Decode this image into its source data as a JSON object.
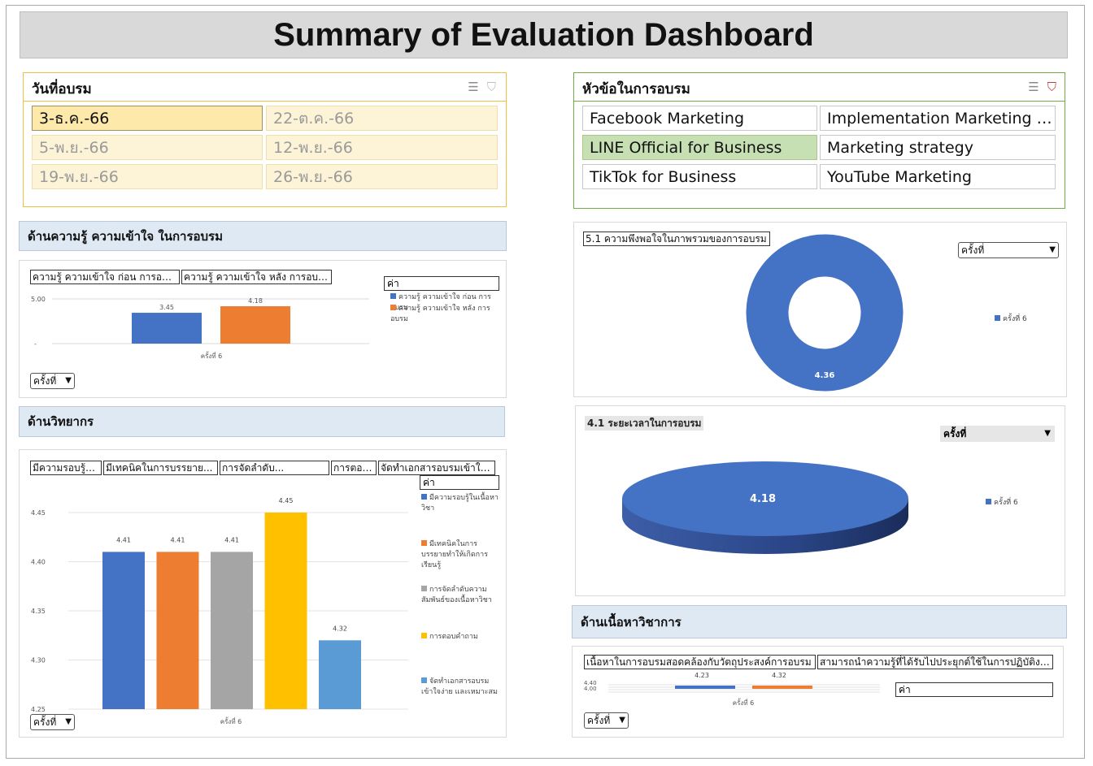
{
  "title": "Summary of Evaluation Dashboard",
  "date_slicer": {
    "header": "วันที่อบรม",
    "items": [
      "3-ธ.ค.-66",
      "22-ต.ค.-66",
      "5-พ.ย.-66",
      "12-พ.ย.-66",
      "19-พ.ย.-66",
      "26-พ.ย.-66"
    ],
    "selected": "3-ธ.ค.-66"
  },
  "topic_slicer": {
    "header": "หัวข้อในการอบรม",
    "items": [
      "Facebook Marketing",
      "Implementation Marketing Wo...",
      "LINE Official for Business",
      "Marketing strategy",
      "TikTok for Business",
      "YouTube Marketing"
    ],
    "selected": "LINE Official for Business"
  },
  "slicer_icons": {
    "multiselect": "multi-select-icon",
    "clear": "clear-filter-icon"
  },
  "knowledge": {
    "header": "ด้านความรู้ ความเข้าใจ ในการอบรม",
    "field_buttons": [
      "ความรู้ ความเข้าใจ ก่อน การอบรม",
      "ความรู้ ความเข้าใจ หลัง การอบรม"
    ],
    "values_label": "ค่า",
    "dropdown": "ครั้งที่"
  },
  "lecturer": {
    "header": "ด้านวิทยากร",
    "field_buttons": [
      "มีความรอบรู้ใน...",
      "มีเทคนิคในการบรรยาย...",
      "การจัดลำดับ...",
      "การตอบ...",
      "จัดทำเอกสารอบรมเข้าใจ..."
    ],
    "values_label": "ค่า",
    "dropdown": "ครั้งที่"
  },
  "satisfaction": {
    "title": "5.1 ความพึงพอใจในภาพรวมของการอบรม",
    "dropdown": "ครั้งที่"
  },
  "duration": {
    "title": "4.1 ระยะเวลาในการอบรม",
    "dropdown": "ครั้งที่"
  },
  "content": {
    "header": "ด้านเนื้อหาวิชาการ",
    "field_buttons": [
      "เนื้อหาในการอบรมสอดคล้องกับวัตถุประสงค์การอบรม",
      "สามารถนำความรู้ที่ได้รับไปประยุกต์ใช้ในการปฏิบัติงาน"
    ],
    "values_label": "ค่า",
    "dropdown": "ครั้งที่"
  },
  "colors": {
    "blue": "#4472c4",
    "orange": "#ed7d31",
    "gray": "#a5a5a5",
    "yellow": "#ffc000",
    "lightblue": "#5b9bd5"
  },
  "chart_data": [
    {
      "id": "knowledge",
      "type": "bar",
      "categories": [
        "ครั้งที่ 6"
      ],
      "series": [
        {
          "name": "ความรู้ ความเข้าใจ ก่อน การอบรม",
          "values": [
            3.45
          ]
        },
        {
          "name": "ความรู้ ความเข้าใจ หลัง การอบรม",
          "values": [
            4.18
          ]
        }
      ],
      "ylim": [
        0,
        5
      ],
      "yticks": [
        "5.00",
        "-"
      ],
      "xlabel": "ครั้งที่ 6"
    },
    {
      "id": "lecturer",
      "type": "bar",
      "categories": [
        "ครั้งที่ 6"
      ],
      "series": [
        {
          "name": "มีความรอบรู้ในเนื้อหาวิชา",
          "values": [
            4.41
          ]
        },
        {
          "name": "มีเทคนิคในการบรรยายทำให้เกิดการเรียนรู้",
          "values": [
            4.41
          ]
        },
        {
          "name": "การจัดลำดับความสัมพันธ์ของเนื้อหาวิชา",
          "values": [
            4.41
          ]
        },
        {
          "name": "การตอบคำถาม",
          "values": [
            4.45
          ]
        },
        {
          "name": "จัดทำเอกสารอบรมเข้าใจง่าย และเหมาะสม",
          "values": [
            4.32
          ]
        }
      ],
      "ylim": [
        4.25,
        4.45
      ],
      "yticks": [
        "4.45",
        "4.40",
        "4.35",
        "4.30",
        "4.25"
      ],
      "xlabel": "ครั้งที่ 6"
    },
    {
      "id": "satisfaction",
      "type": "pie",
      "series": [
        {
          "name": "ครั้งที่ 6",
          "values": [
            4.36
          ]
        }
      ],
      "legend": "ครั้งที่ 6"
    },
    {
      "id": "duration",
      "type": "pie",
      "series": [
        {
          "name": "ครั้งที่ 6",
          "values": [
            4.18
          ]
        }
      ],
      "legend": "ครั้งที่ 6"
    },
    {
      "id": "content",
      "type": "bar",
      "categories": [
        "ครั้งที่ 6"
      ],
      "series": [
        {
          "name": "เนื้อหาในการอบรมสอดคล้องกับวัตถุประสงค์การอบรม",
          "values": [
            4.23
          ]
        },
        {
          "name": "สามารถนำความรู้ที่ได้รับไปประยุกต์ใช้ในการปฏิบัติงาน",
          "values": [
            4.32
          ]
        }
      ],
      "yticks": [
        "4.40",
        "4.00"
      ],
      "xlabel": "ครั้งที่ 6"
    }
  ]
}
